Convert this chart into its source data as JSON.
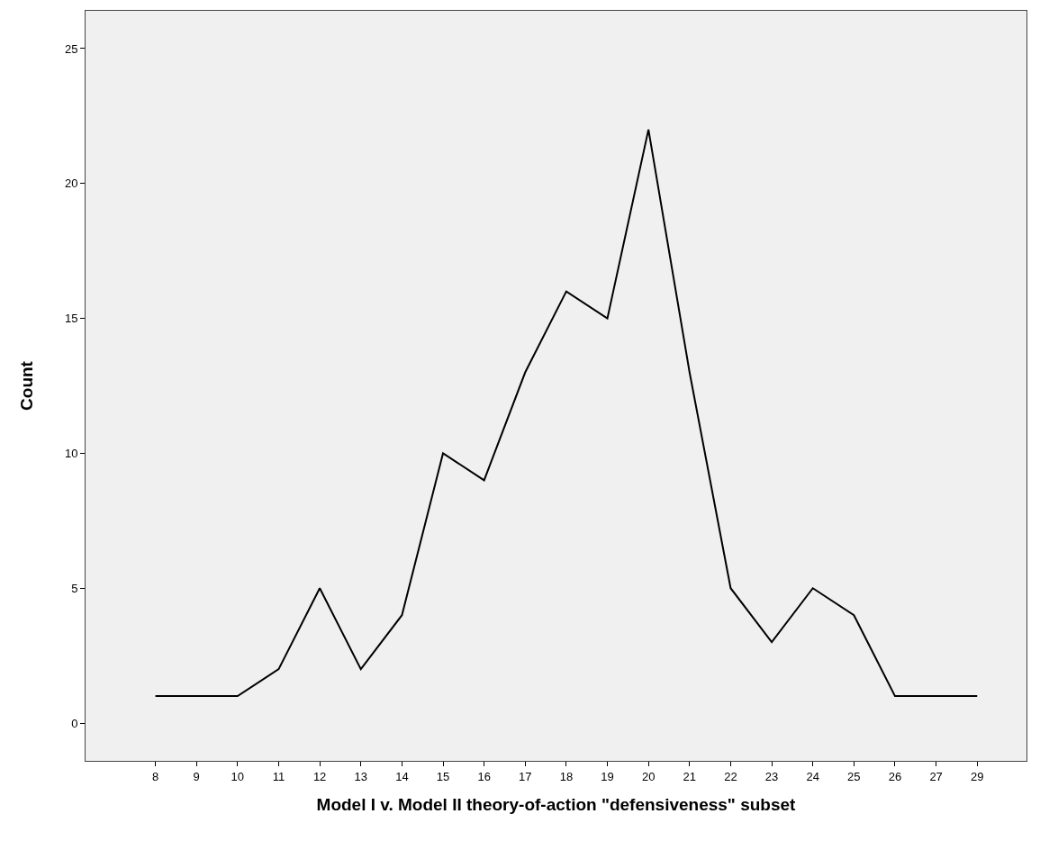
{
  "chart_data": {
    "type": "line",
    "xlabel": "Model I v. Model II theory-of-action \"defensiveness\" subset",
    "ylabel": "Count",
    "categories": [
      "8",
      "9",
      "10",
      "11",
      "12",
      "13",
      "14",
      "15",
      "16",
      "17",
      "18",
      "19",
      "20",
      "21",
      "22",
      "23",
      "24",
      "25",
      "26",
      "27",
      "29"
    ],
    "series": [
      {
        "color": "#000000",
        "values": [
          1,
          1,
          1,
          2,
          5,
          2,
          4,
          10,
          9,
          13,
          16,
          15,
          22,
          13,
          5,
          3,
          5,
          4,
          1,
          1,
          1
        ]
      }
    ],
    "ylim": [
      -1.4,
      26.4
    ],
    "yticks": [
      0,
      5,
      10,
      15,
      20,
      25
    ],
    "marker": "none",
    "line_style": "solid"
  }
}
